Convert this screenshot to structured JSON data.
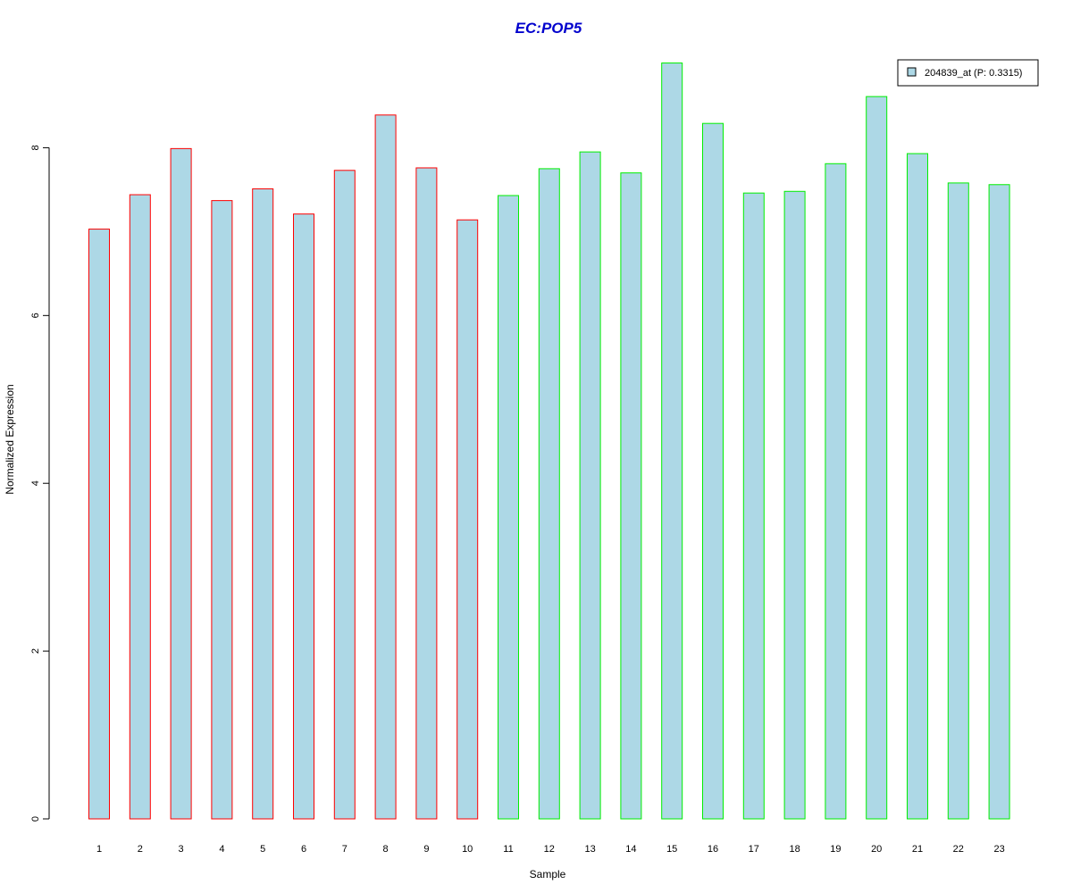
{
  "chart_data": {
    "type": "bar",
    "title": "EC:POP5",
    "xlabel": "Sample",
    "ylabel": "Normalized Expression",
    "categories": [
      "1",
      "2",
      "3",
      "4",
      "5",
      "6",
      "7",
      "8",
      "9",
      "10",
      "11",
      "12",
      "13",
      "14",
      "15",
      "16",
      "17",
      "18",
      "19",
      "20",
      "21",
      "22",
      "23"
    ],
    "values": [
      7.03,
      7.44,
      7.99,
      7.37,
      7.51,
      7.21,
      7.73,
      8.39,
      7.76,
      7.14,
      7.43,
      7.75,
      7.95,
      7.7,
      9.01,
      8.29,
      7.46,
      7.48,
      7.81,
      8.61,
      7.93,
      7.58,
      7.56
    ],
    "groups": [
      {
        "samples": [
          "1",
          "2",
          "3",
          "4",
          "5",
          "6",
          "7",
          "8",
          "9",
          "10"
        ],
        "border_color": "#ff0000"
      },
      {
        "samples": [
          "11",
          "12",
          "13",
          "14",
          "15",
          "16",
          "17",
          "18",
          "19",
          "20",
          "21",
          "22",
          "23"
        ],
        "border_color": "#00ee00"
      }
    ],
    "bar_fill": "#add8e6",
    "title_color": "#0000cd",
    "ylim": [
      0,
      9.25
    ],
    "yticks": [
      0,
      2,
      4,
      6,
      8
    ],
    "grid": false,
    "legend": {
      "placement": "top-right",
      "entries": [
        {
          "label": "204839_at (P: 0.3315)",
          "color": "#add8e6"
        }
      ]
    }
  }
}
